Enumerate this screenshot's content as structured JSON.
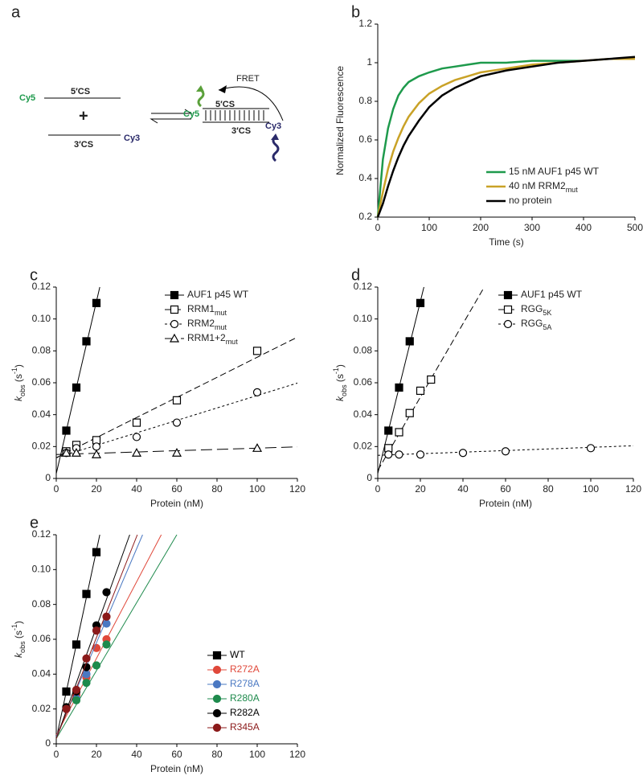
{
  "diagram": {
    "panel": "a",
    "left_top_dye": "Cy5",
    "left_top_strand": "5′CS",
    "plus": "+",
    "left_bottom_strand": "3′CS",
    "left_bottom_dye": "Cy3",
    "fret": "FRET",
    "right_top_dye": "Cy5",
    "right_top_strand": "5′CS",
    "right_bottom_strand": "3′CS",
    "right_bottom_dye": "Cy3"
  },
  "chart_data": [
    {
      "panel": "b",
      "type": "line",
      "xlabel": "Time (s)",
      "ylabel": [
        {
          "text": "Normalized Fluorescence"
        }
      ],
      "x": [
        0,
        10,
        20,
        30,
        40,
        50,
        60,
        80,
        100,
        125,
        150,
        175,
        200,
        250,
        300,
        350,
        400,
        450,
        500
      ],
      "series": [
        {
          "name": "15 nM AUF1 p45 WT",
          "color": "#1e9a4c",
          "values": [
            0.2,
            0.5,
            0.66,
            0.76,
            0.83,
            0.87,
            0.9,
            0.93,
            0.95,
            0.97,
            0.98,
            0.99,
            1.0,
            1.0,
            1.01,
            1.01,
            1.01,
            null,
            null
          ]
        },
        {
          "name": "40 nM RRM2",
          "name_sub": "mut",
          "color": "#c9a227",
          "values": [
            0.2,
            0.33,
            0.45,
            0.54,
            0.61,
            0.67,
            0.72,
            0.79,
            0.84,
            0.88,
            0.91,
            0.93,
            0.95,
            0.97,
            0.99,
            1.0,
            1.01,
            1.02,
            1.02
          ]
        },
        {
          "name": "no protein",
          "color": "#000000",
          "values": [
            0.2,
            0.27,
            0.36,
            0.44,
            0.51,
            0.57,
            0.62,
            0.7,
            0.77,
            0.83,
            0.87,
            0.9,
            0.93,
            0.96,
            0.98,
            1.0,
            1.01,
            1.02,
            1.03
          ]
        }
      ],
      "xlim": [
        0,
        500
      ],
      "xticks": [
        0,
        100,
        200,
        300,
        400,
        500
      ],
      "ylim": [
        0.2,
        1.2
      ],
      "yticks": [
        0.2,
        0.4,
        0.6,
        0.8,
        1,
        1.2
      ],
      "legend": "lower right"
    },
    {
      "panel": "c",
      "type": "scatter",
      "xlabel": "Protein (nM)",
      "ylabel": [
        {
          "text": "k",
          "style": "italic"
        },
        {
          "text": "obs",
          "style": "sub"
        },
        {
          "text": " (s"
        },
        {
          "text": "-1",
          "style": "sup"
        },
        {
          "text": ")"
        }
      ],
      "series": [
        {
          "name": "AUF1 p45 WT",
          "color": "#000000",
          "marker": "square",
          "filled": true,
          "dash": "solid",
          "x": [
            5,
            10,
            15,
            20
          ],
          "values": [
            0.03,
            0.057,
            0.086,
            0.11
          ],
          "fit_intercept": 0.003,
          "fit_slope": 0.0054
        },
        {
          "name": "RRM1",
          "name_sub": "mut",
          "color": "#000000",
          "marker": "square",
          "filled": false,
          "dash": "dashed",
          "x": [
            5,
            10,
            20,
            40,
            60,
            100
          ],
          "values": [
            0.017,
            0.021,
            0.024,
            0.035,
            0.049,
            0.08
          ],
          "fit_intercept": 0.013,
          "fit_slope": 0.00063
        },
        {
          "name": "RRM2",
          "name_sub": "mut",
          "color": "#000000",
          "marker": "circle",
          "filled": false,
          "dash": "dotted",
          "x": [
            5,
            10,
            20,
            40,
            60,
            100
          ],
          "values": [
            0.016,
            0.019,
            0.02,
            0.026,
            0.035,
            0.054
          ],
          "fit_intercept": 0.013,
          "fit_slope": 0.00039
        },
        {
          "name": "RRM1+2",
          "name_sub": "mut",
          "color": "#000000",
          "marker": "triangle",
          "filled": false,
          "dash": "long-dash",
          "x": [
            5,
            10,
            20,
            40,
            60,
            100
          ],
          "values": [
            0.016,
            0.016,
            0.015,
            0.016,
            0.016,
            0.019
          ],
          "fit_intercept": 0.015,
          "fit_slope": 4e-05
        }
      ],
      "xlim": [
        0,
        120
      ],
      "xticks": [
        0,
        20,
        40,
        60,
        80,
        100,
        120
      ],
      "ylim": [
        0,
        0.12
      ],
      "yticks": [
        0,
        0.02,
        0.04,
        0.06,
        0.08,
        {
          "value": 0.1,
          "label": "0.10"
        },
        0.12
      ],
      "legend": "upper right"
    },
    {
      "panel": "d",
      "type": "scatter",
      "xlabel": "Protein (nM)",
      "ylabel": [
        {
          "text": "k",
          "style": "italic"
        },
        {
          "text": "obs",
          "style": "sub"
        },
        {
          "text": " (s"
        },
        {
          "text": "-1",
          "style": "sup"
        },
        {
          "text": ")"
        }
      ],
      "series": [
        {
          "name": "AUF1 p45 WT",
          "color": "#000000",
          "marker": "square",
          "filled": true,
          "dash": "solid",
          "x": [
            5,
            10,
            15,
            20
          ],
          "values": [
            0.03,
            0.057,
            0.086,
            0.11
          ],
          "fit_intercept": 0.003,
          "fit_slope": 0.0054
        },
        {
          "name": "RGG",
          "name_sub": "5K",
          "color": "#000000",
          "marker": "square",
          "filled": false,
          "dash": "dashed",
          "x": [
            5,
            10,
            15,
            20,
            25
          ],
          "values": [
            0.019,
            0.029,
            0.041,
            0.055,
            0.062
          ],
          "fit_intercept": 0.005,
          "fit_slope": 0.0023
        },
        {
          "name": "RGG",
          "name_sub": "5A",
          "color": "#000000",
          "marker": "circle",
          "filled": false,
          "dash": "dotted",
          "x": [
            5,
            10,
            20,
            40,
            60,
            100
          ],
          "values": [
            0.015,
            0.015,
            0.015,
            0.016,
            0.017,
            0.019
          ],
          "fit_intercept": 0.0145,
          "fit_slope": 5e-05
        }
      ],
      "xlim": [
        0,
        120
      ],
      "xticks": [
        0,
        20,
        40,
        60,
        80,
        100,
        120
      ],
      "ylim": [
        0,
        0.12
      ],
      "yticks": [
        0,
        0.02,
        0.04,
        0.06,
        0.08,
        {
          "value": 0.1,
          "label": "0.10"
        },
        0.12
      ],
      "legend": "upper right"
    },
    {
      "panel": "e",
      "type": "scatter",
      "xlabel": "Protein (nM)",
      "ylabel": [
        {
          "text": "k",
          "style": "italic"
        },
        {
          "text": "obs",
          "style": "sub"
        },
        {
          "text": " (s"
        },
        {
          "text": "-1",
          "style": "sup"
        },
        {
          "text": ")"
        }
      ],
      "legend_text_colored": true,
      "series": [
        {
          "name": "WT",
          "color": "#000000",
          "marker": "square",
          "filled": true,
          "dash": "solid",
          "x": [
            5,
            10,
            15,
            20
          ],
          "values": [
            0.03,
            0.057,
            0.086,
            0.11
          ],
          "fit_intercept": 0.003,
          "fit_slope": 0.0054
        },
        {
          "name": "R272A",
          "color": "#e0483a",
          "marker": "circle",
          "filled": true,
          "dash": "solid",
          "x": [
            5,
            10,
            15,
            20,
            25
          ],
          "values": [
            0.021,
            0.028,
            0.038,
            0.055,
            0.06
          ],
          "fit_intercept": 0.005,
          "fit_slope": 0.0022
        },
        {
          "name": "R278A",
          "color": "#4a78c2",
          "marker": "circle",
          "filled": true,
          "dash": "solid",
          "x": [
            5,
            10,
            15,
            20,
            25
          ],
          "values": [
            0.02,
            0.026,
            0.04,
            0.065,
            0.069
          ],
          "fit_intercept": 0.004,
          "fit_slope": 0.0027
        },
        {
          "name": "R280A",
          "color": "#1e8a4c",
          "marker": "circle",
          "filled": true,
          "dash": "solid",
          "x": [
            5,
            10,
            15,
            20,
            25
          ],
          "values": [
            0.021,
            0.025,
            0.035,
            0.045,
            0.057
          ],
          "fit_intercept": 0.003,
          "fit_slope": 0.00195
        },
        {
          "name": "R282A",
          "color": "#000000",
          "marker": "circle",
          "filled": true,
          "dash": "solid",
          "x": [
            5,
            10,
            15,
            20,
            25
          ],
          "values": [
            0.021,
            0.03,
            0.044,
            0.068,
            0.087
          ],
          "fit_intercept": 0.003,
          "fit_slope": 0.0032
        },
        {
          "name": "R345A",
          "color": "#8b1a1a",
          "marker": "circle",
          "filled": true,
          "dash": "solid",
          "x": [
            5,
            10,
            15,
            20,
            25
          ],
          "values": [
            0.02,
            0.031,
            0.049,
            0.065,
            0.073
          ],
          "fit_intercept": 0.003,
          "fit_slope": 0.0029
        }
      ],
      "xlim": [
        0,
        120
      ],
      "xticks": [
        0,
        20,
        40,
        60,
        80,
        100,
        120
      ],
      "ylim": [
        0,
        0.12
      ],
      "yticks": [
        0,
        0.02,
        0.04,
        0.06,
        0.08,
        {
          "value": 0.1,
          "label": "0.10"
        },
        0.12
      ],
      "legend": "lower right"
    }
  ]
}
